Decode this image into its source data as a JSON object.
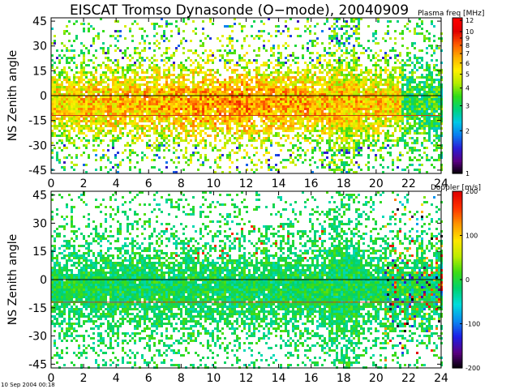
{
  "title": "EISCAT Tromso Dynasonde (O−mode),  20040909",
  "footer": "10 Sep 2004 00:18",
  "chart_data": [
    {
      "type": "heatmap",
      "ylabel": "NS Zenith angle",
      "xlabel": "",
      "xlim": [
        0,
        24
      ],
      "ylim": [
        -47,
        47
      ],
      "xticks": [
        0,
        2,
        4,
        6,
        8,
        10,
        12,
        14,
        16,
        18,
        20,
        22,
        24
      ],
      "yticks": [
        45,
        30,
        15,
        0,
        -15,
        -30,
        -45
      ],
      "reference_lines": [
        0,
        -12
      ],
      "colorbar": {
        "label": "Plasma freq [MHz]",
        "scale": "log",
        "range": [
          1,
          12.5
        ],
        "ticks": [
          1,
          2,
          3,
          4,
          5,
          6,
          7,
          8,
          9,
          10,
          12
        ],
        "colors": [
          "#000000",
          "#5a0082",
          "#2a1dd6",
          "#0a7cf0",
          "#00c8e6",
          "#00d27a",
          "#30dc18",
          "#b4ec00",
          "#fff000",
          "#ffb000",
          "#ff5a00",
          "#e00000",
          "#ff0000"
        ]
      }
    },
    {
      "type": "heatmap",
      "ylabel": "NS Zenith angle",
      "xlabel": "",
      "xlim": [
        0,
        24
      ],
      "ylim": [
        -47,
        47
      ],
      "xticks": [
        0,
        2,
        4,
        6,
        8,
        10,
        12,
        14,
        16,
        18,
        20,
        22,
        24
      ],
      "yticks": [
        45,
        30,
        15,
        0,
        -15,
        -30,
        -45
      ],
      "reference_lines": [
        0,
        -12
      ],
      "colorbar": {
        "label": "Doppler [m/s]",
        "scale": "linear",
        "range": [
          -200,
          200
        ],
        "ticks": [
          200,
          100,
          0,
          -100,
          -200
        ],
        "colors": [
          "#000000",
          "#5a0082",
          "#1e1ee6",
          "#0a8cf0",
          "#00dcdc",
          "#00d26e",
          "#3cdc14",
          "#beec00",
          "#ffe600",
          "#ff9600",
          "#ff3200",
          "#e00000"
        ]
      }
    }
  ]
}
